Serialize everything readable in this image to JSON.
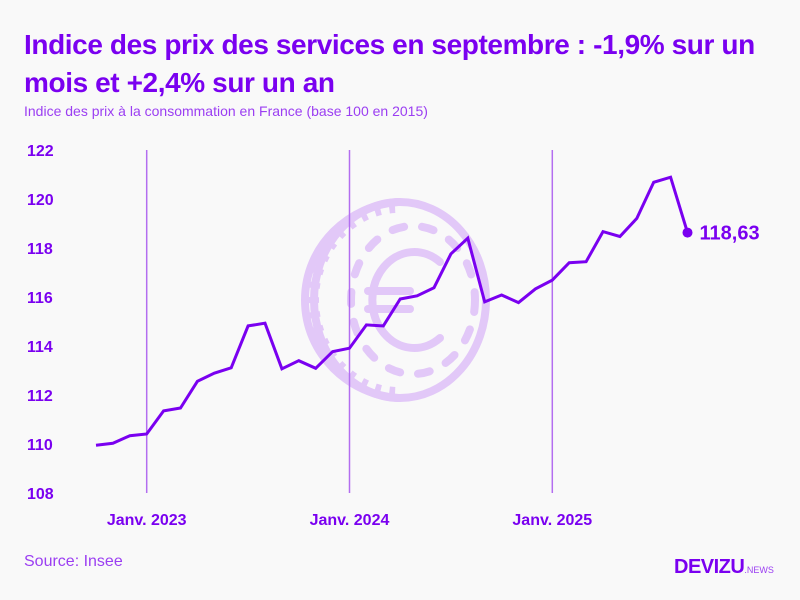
{
  "header": {
    "title": "Indice des prix des services en septembre : -1,9% sur un mois et +2,4% sur un an",
    "subtitle": "Indice des prix à la consommation en France (base 100 en 2015)"
  },
  "footer": {
    "source": "Source: Insee",
    "brand_main": "DEVIZU",
    "brand_suffix": ".NEWS"
  },
  "colors": {
    "accent": "#7a00f0",
    "gridline": "#b36ef0",
    "watermark": "#e2c8f8",
    "background": "#f9f9f9"
  },
  "chart_data": {
    "type": "line",
    "title": "Indice des prix des services en septembre : -1,9% sur un mois et +2,4% sur un an",
    "subtitle": "Indice des prix à la consommation en France (base 100 en 2015)",
    "xlabel": "",
    "ylabel": "",
    "ylim": [
      108,
      122
    ],
    "yticks": [
      108,
      110,
      112,
      114,
      116,
      118,
      120,
      122
    ],
    "xtick_labels": [
      {
        "label": "Janv. 2023",
        "index": 3
      },
      {
        "label": "Janv. 2024",
        "index": 15
      },
      {
        "label": "Janv. 2025",
        "index": 27
      }
    ],
    "grid": "vertical lines at January",
    "legend": "none",
    "x": [
      "2022-10",
      "2022-11",
      "2022-12",
      "2023-01",
      "2023-02",
      "2023-03",
      "2023-04",
      "2023-05",
      "2023-06",
      "2023-07",
      "2023-08",
      "2023-09",
      "2023-10",
      "2023-11",
      "2023-12",
      "2024-01",
      "2024-02",
      "2024-03",
      "2024-04",
      "2024-05",
      "2024-06",
      "2024-07",
      "2024-08",
      "2024-09",
      "2024-10",
      "2024-11",
      "2024-12",
      "2025-01",
      "2025-02",
      "2025-03",
      "2025-04",
      "2025-05",
      "2025-06",
      "2025-07",
      "2025-08",
      "2025-09"
    ],
    "series": [
      {
        "name": "Indice des prix des services",
        "values": [
          109.95,
          110.03,
          110.34,
          110.41,
          111.35,
          111.47,
          112.56,
          112.89,
          113.11,
          114.82,
          114.93,
          113.07,
          113.4,
          113.09,
          113.77,
          113.91,
          114.86,
          114.82,
          115.92,
          116.05,
          116.38,
          117.76,
          118.4,
          115.8,
          116.08,
          115.77,
          116.33,
          116.69,
          117.4,
          117.44,
          118.67,
          118.47,
          119.21,
          120.68,
          120.89,
          118.63
        ]
      }
    ],
    "annotations": [
      {
        "label": "118,63",
        "index": 35
      }
    ]
  }
}
